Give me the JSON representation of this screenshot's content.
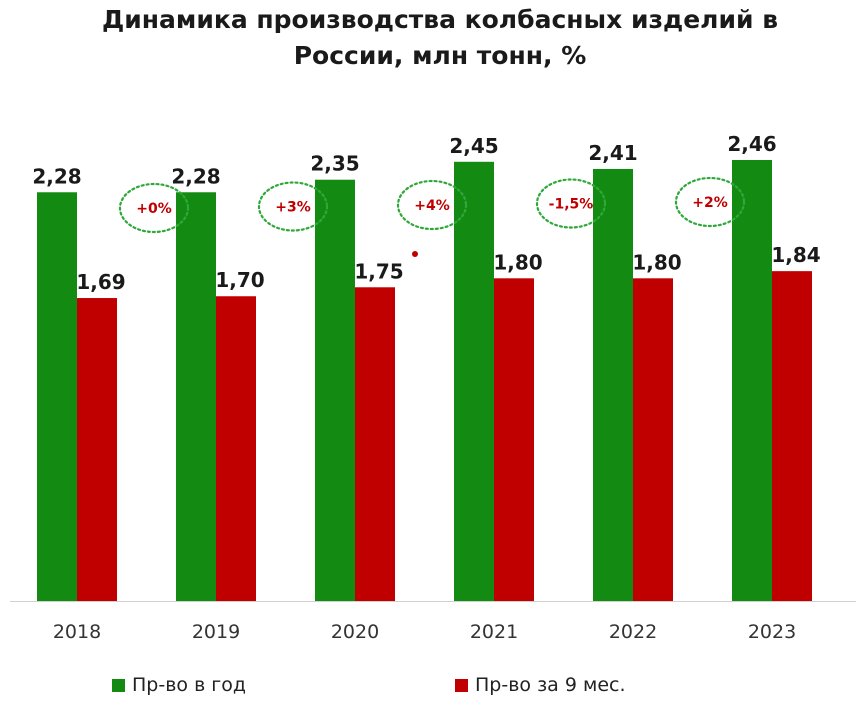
{
  "chart_data": {
    "type": "bar",
    "title_lines": [
      "Динамика производства колбасных изделий в",
      "России, млн тонн, %"
    ],
    "categories": [
      "2018",
      "2019",
      "2020",
      "2021",
      "2022",
      "2023"
    ],
    "series": [
      {
        "name": "Пр-во в год",
        "color": "#138a12",
        "values": [
          2.28,
          2.28,
          2.35,
          2.45,
          2.41,
          2.46
        ],
        "labels": [
          "2,28",
          "2,28",
          "2,35",
          "2,45",
          "2,41",
          "2,46"
        ]
      },
      {
        "name": "Пр-во за 9 мес.",
        "color": "#c00000",
        "values": [
          1.69,
          1.7,
          1.75,
          1.8,
          1.8,
          1.84
        ],
        "labels": [
          "1,69",
          "1,70",
          "1,75",
          "1,80",
          "1,80",
          "1,84"
        ]
      }
    ],
    "annotations": [
      "+0%",
      "+3%",
      "+4%",
      "-1,5%",
      "+2%"
    ],
    "annotation_color": "#c00000",
    "annotation_border_color": "#2fa83a",
    "ylim": [
      0,
      2.46
    ],
    "grid": false,
    "legend_position": "bottom"
  }
}
